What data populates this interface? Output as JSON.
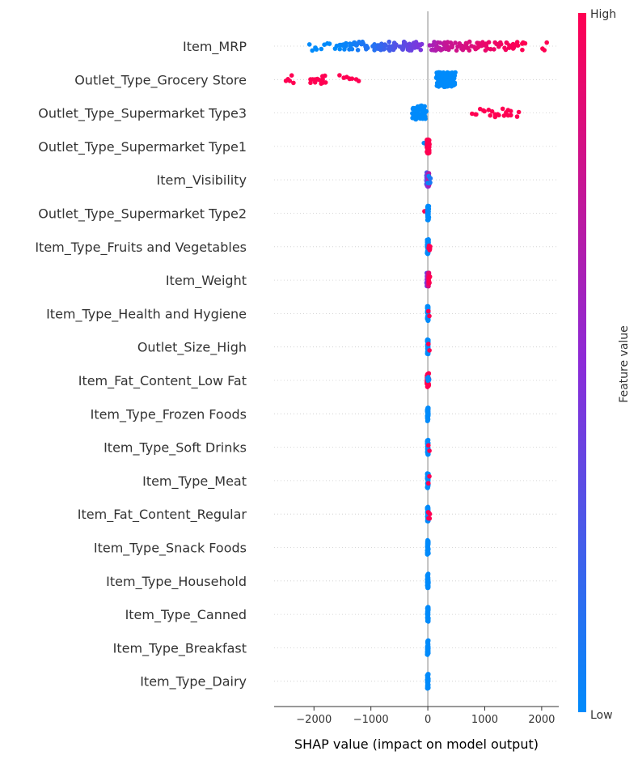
{
  "chart_data": {
    "type": "scatter",
    "subtype": "shap-beeswarm",
    "xlabel": "SHAP value (impact on model output)",
    "xlim": [
      -2700,
      2300
    ],
    "xticks": [
      -2000,
      -1000,
      0,
      1000,
      2000
    ],
    "xtick_labels": [
      "−2000",
      "−1000",
      "0",
      "1000",
      "2000"
    ],
    "colorbar": {
      "title": "Feature value",
      "high_label": "High",
      "low_label": "Low",
      "low_color": "#008bfb",
      "mid_color": "#8c2bd8",
      "high_color": "#ff0052"
    },
    "zero_line_color": "#999999",
    "features": [
      {
        "name": "Item_MRP",
        "points": [
          {
            "x_from": -2120,
            "x_to": -1700,
            "n": 8,
            "c_from": 0.0,
            "c_to": 0.0
          },
          {
            "x_from": -1650,
            "x_to": -1000,
            "n": 30,
            "c_from": 0.0,
            "c_to": 0.12
          },
          {
            "x_from": -1000,
            "x_to": -500,
            "n": 34,
            "c_from": 0.12,
            "c_to": 0.3
          },
          {
            "x_from": -500,
            "x_to": -100,
            "n": 34,
            "c_from": 0.3,
            "c_to": 0.45
          },
          {
            "x_from": 30,
            "x_to": 450,
            "n": 36,
            "c_from": 0.62,
            "c_to": 0.78
          },
          {
            "x_from": 450,
            "x_to": 1100,
            "n": 34,
            "c_from": 0.78,
            "c_to": 0.92
          },
          {
            "x_from": 1100,
            "x_to": 1750,
            "n": 26,
            "c_from": 0.92,
            "c_to": 1.0
          },
          {
            "x_from": 2000,
            "x_to": 2100,
            "n": 3,
            "c_from": 1.0,
            "c_to": 1.0
          }
        ]
      },
      {
        "name": "Outlet_Type_Grocery Store",
        "points": [
          {
            "x_from": -2500,
            "x_to": -2350,
            "n": 5,
            "c_from": 1.0,
            "c_to": 1.0
          },
          {
            "x_from": -2100,
            "x_to": -1750,
            "n": 16,
            "c_from": 1.0,
            "c_to": 1.0
          },
          {
            "x_from": -1560,
            "x_to": -1200,
            "n": 8,
            "c_from": 1.0,
            "c_to": 1.0
          },
          {
            "x_from": 120,
            "x_to": 500,
            "n": 120,
            "c_from": 0.0,
            "c_to": 0.0
          }
        ]
      },
      {
        "name": "Outlet_Type_Supermarket Type3",
        "points": [
          {
            "x_from": -280,
            "x_to": -20,
            "n": 60,
            "c_from": 0.0,
            "c_to": 0.0
          },
          {
            "x_from": 750,
            "x_to": 1650,
            "n": 22,
            "c_from": 1.0,
            "c_to": 1.0
          }
        ]
      },
      {
        "name": "Outlet_Type_Supermarket Type1",
        "points": [
          {
            "x_from": -70,
            "x_to": -10,
            "n": 3,
            "c_from": 0.0,
            "c_to": 0.0
          },
          {
            "x_from": -20,
            "x_to": 30,
            "n": 60,
            "c_from": 1.0,
            "c_to": 1.0
          }
        ]
      },
      {
        "name": "Item_Visibility",
        "points": [
          {
            "x_from": -30,
            "x_to": 30,
            "n": 60,
            "c_from": 0.2,
            "c_to": 0.75
          },
          {
            "x_from": 0,
            "x_to": 50,
            "n": 6,
            "c_from": 0.0,
            "c_to": 0.1
          }
        ]
      },
      {
        "name": "Outlet_Type_Supermarket Type2",
        "points": [
          {
            "x_from": -60,
            "x_to": -30,
            "n": 2,
            "c_from": 1.0,
            "c_to": 1.0
          },
          {
            "x_from": -10,
            "x_to": 20,
            "n": 60,
            "c_from": 0.0,
            "c_to": 0.0
          }
        ]
      },
      {
        "name": "Item_Type_Fruits and Vegetables",
        "points": [
          {
            "x_from": -15,
            "x_to": 15,
            "n": 60,
            "c_from": 0.0,
            "c_to": 0.0
          },
          {
            "x_from": 10,
            "x_to": 45,
            "n": 6,
            "c_from": 1.0,
            "c_to": 1.0
          }
        ]
      },
      {
        "name": "Item_Weight",
        "points": [
          {
            "x_from": -25,
            "x_to": 25,
            "n": 60,
            "c_from": 0.3,
            "c_to": 0.95
          },
          {
            "x_from": 10,
            "x_to": 40,
            "n": 4,
            "c_from": 1.0,
            "c_to": 1.0
          }
        ]
      },
      {
        "name": "Item_Type_Health and Hygiene",
        "points": [
          {
            "x_from": -12,
            "x_to": 12,
            "n": 60,
            "c_from": 0.0,
            "c_to": 0.0
          },
          {
            "x_from": 10,
            "x_to": 30,
            "n": 2,
            "c_from": 1.0,
            "c_to": 1.0
          }
        ]
      },
      {
        "name": "Outlet_Size_High",
        "points": [
          {
            "x_from": -12,
            "x_to": 12,
            "n": 60,
            "c_from": 0.0,
            "c_to": 0.0
          },
          {
            "x_from": 10,
            "x_to": 30,
            "n": 2,
            "c_from": 1.0,
            "c_to": 1.0
          }
        ]
      },
      {
        "name": "Item_Fat_Content_Low Fat",
        "points": [
          {
            "x_from": -20,
            "x_to": 20,
            "n": 60,
            "c_from": 1.0,
            "c_to": 1.0
          },
          {
            "x_from": -10,
            "x_to": 25,
            "n": 6,
            "c_from": 0.0,
            "c_to": 0.0
          }
        ]
      },
      {
        "name": "Item_Type_Frozen Foods",
        "points": [
          {
            "x_from": -12,
            "x_to": 12,
            "n": 60,
            "c_from": 0.0,
            "c_to": 0.0
          }
        ]
      },
      {
        "name": "Item_Type_Soft Drinks",
        "points": [
          {
            "x_from": -12,
            "x_to": 12,
            "n": 60,
            "c_from": 0.0,
            "c_to": 0.0
          },
          {
            "x_from": 10,
            "x_to": 30,
            "n": 2,
            "c_from": 1.0,
            "c_to": 1.0
          }
        ]
      },
      {
        "name": "Item_Type_Meat",
        "points": [
          {
            "x_from": -12,
            "x_to": 12,
            "n": 60,
            "c_from": 0.0,
            "c_to": 0.0
          },
          {
            "x_from": 10,
            "x_to": 30,
            "n": 2,
            "c_from": 1.0,
            "c_to": 1.0
          }
        ]
      },
      {
        "name": "Item_Fat_Content_Regular",
        "points": [
          {
            "x_from": -12,
            "x_to": 12,
            "n": 60,
            "c_from": 0.0,
            "c_to": 0.0
          },
          {
            "x_from": 5,
            "x_to": 40,
            "n": 6,
            "c_from": 1.0,
            "c_to": 1.0
          }
        ]
      },
      {
        "name": "Item_Type_Snack Foods",
        "points": [
          {
            "x_from": -12,
            "x_to": 12,
            "n": 60,
            "c_from": 0.0,
            "c_to": 0.0
          }
        ]
      },
      {
        "name": "Item_Type_Household",
        "points": [
          {
            "x_from": -12,
            "x_to": 12,
            "n": 60,
            "c_from": 0.0,
            "c_to": 0.0
          }
        ]
      },
      {
        "name": "Item_Type_Canned",
        "points": [
          {
            "x_from": -12,
            "x_to": 12,
            "n": 60,
            "c_from": 0.0,
            "c_to": 0.0
          }
        ]
      },
      {
        "name": "Item_Type_Breakfast",
        "points": [
          {
            "x_from": -12,
            "x_to": 12,
            "n": 60,
            "c_from": 0.0,
            "c_to": 0.0
          }
        ]
      },
      {
        "name": "Item_Type_Dairy",
        "points": [
          {
            "x_from": -12,
            "x_to": 12,
            "n": 60,
            "c_from": 0.0,
            "c_to": 0.0
          }
        ]
      }
    ]
  }
}
